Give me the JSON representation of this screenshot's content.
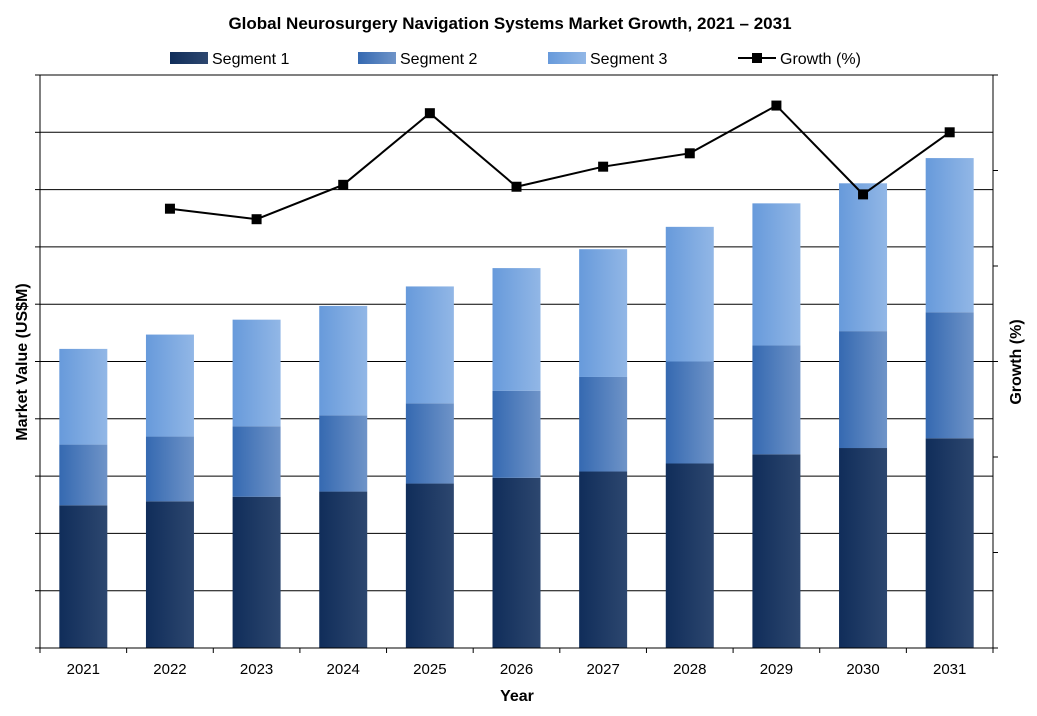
{
  "chart_data": {
    "type": "bar",
    "stacked": true,
    "title": "Global Neurosurgery Navigation Systems Market Growth, 2021 – 2031",
    "xlabel": "Year",
    "ylabel": "Market Value (US$M)",
    "y2label": "Growth (%)",
    "categories": [
      "2021",
      "2022",
      "2023",
      "2024",
      "2025",
      "2026",
      "2027",
      "2028",
      "2029",
      "2030",
      "2031"
    ],
    "ylim": [
      0,
      10
    ],
    "y2lim": [
      0,
      6
    ],
    "y_tick_labels_shown": false,
    "grid": true,
    "legend_position": "top",
    "series": [
      {
        "name": "Segment 1",
        "type": "bar",
        "color": "#1b3762",
        "values": [
          2.49,
          2.56,
          2.64,
          2.73,
          2.87,
          2.97,
          3.08,
          3.22,
          3.38,
          3.49,
          3.66
        ]
      },
      {
        "name": "Segment 2",
        "type": "bar",
        "color": "#3f70b5",
        "values": [
          1.06,
          1.13,
          1.23,
          1.33,
          1.4,
          1.52,
          1.65,
          1.78,
          1.9,
          2.04,
          2.2
        ]
      },
      {
        "name": "Segment 3",
        "type": "bar",
        "color": "#6e9fdd",
        "values": [
          1.67,
          1.78,
          1.86,
          1.91,
          2.04,
          2.14,
          2.23,
          2.35,
          2.48,
          2.58,
          2.69
        ]
      },
      {
        "name": "Growth (%)",
        "type": "line",
        "axis": "secondary",
        "color": "#000000",
        "marker": "square",
        "values": [
          null,
          4.6,
          4.49,
          4.85,
          5.6,
          4.83,
          5.04,
          5.18,
          5.68,
          4.75,
          5.4
        ]
      }
    ]
  }
}
